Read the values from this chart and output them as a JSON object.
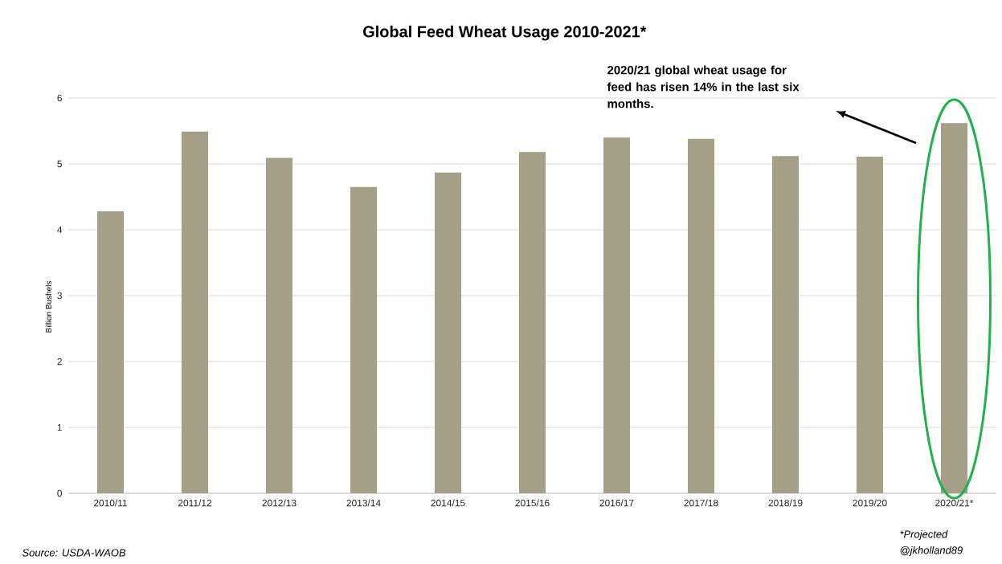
{
  "chart_data": {
    "type": "bar",
    "title": "Global Feed Wheat Usage 2010-2021*",
    "ylabel": "Billion Bushels",
    "categories": [
      "2010/11",
      "2011/12",
      "2012/13",
      "2013/14",
      "2014/15",
      "2015/16",
      "2016/17",
      "2017/18",
      "2018/19",
      "2019/20",
      "2020/21*"
    ],
    "values": [
      4.28,
      5.49,
      5.09,
      4.65,
      4.87,
      5.18,
      5.4,
      5.38,
      5.12,
      5.11,
      5.62
    ],
    "color": "#a69f88",
    "ylim": [
      0,
      6
    ],
    "yticks": [
      0,
      1,
      2,
      3,
      4,
      5,
      6
    ],
    "grid": "y",
    "annotations": [
      "2020/21 global wheat usage for feed has risen 14% in the last six months.",
      "Source: USDA-WAOB",
      "*Projected",
      "@jkholland89"
    ]
  }
}
